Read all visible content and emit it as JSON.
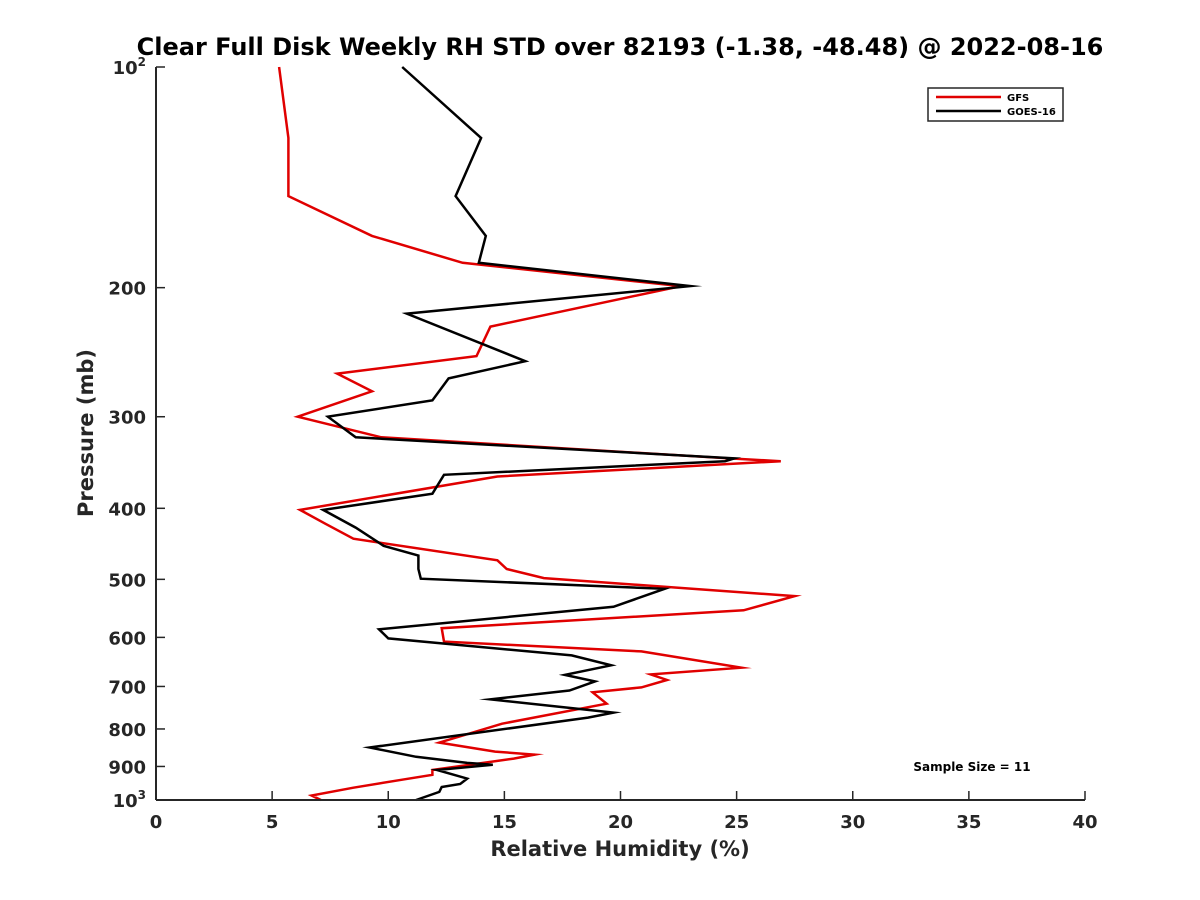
{
  "chart_data": {
    "type": "line",
    "title": "Clear Full Disk Weekly RH STD over 82193 (-1.38, -48.48) @ 2022-08-16",
    "xlabel": "Relative Humidity (%)",
    "ylabel": "Pressure (mb)",
    "xlim": [
      0,
      40
    ],
    "ylim": [
      100,
      1000
    ],
    "y_scale": "log",
    "y_reversed": true,
    "grid": false,
    "legend_position": "top-right",
    "x_ticks": [
      {
        "value": 0,
        "label": "0"
      },
      {
        "value": 5,
        "label": "5"
      },
      {
        "value": 10,
        "label": "10"
      },
      {
        "value": 15,
        "label": "15"
      },
      {
        "value": 20,
        "label": "20"
      },
      {
        "value": 25,
        "label": "25"
      },
      {
        "value": 30,
        "label": "30"
      },
      {
        "value": 35,
        "label": "35"
      },
      {
        "value": 40,
        "label": "40"
      }
    ],
    "y_ticks": [
      {
        "value": 100,
        "label": "10",
        "sup": "2"
      },
      {
        "value": 200,
        "label": "200"
      },
      {
        "value": 300,
        "label": "300"
      },
      {
        "value": 400,
        "label": "400"
      },
      {
        "value": 500,
        "label": "500"
      },
      {
        "value": 600,
        "label": "600"
      },
      {
        "value": 700,
        "label": "700"
      },
      {
        "value": 800,
        "label": "800"
      },
      {
        "value": 900,
        "label": "900"
      },
      {
        "value": 1000,
        "label": "10",
        "sup": "3"
      }
    ],
    "series": [
      {
        "name": "GFS",
        "color": "#e00000",
        "points": [
          [
            5.3,
            100
          ],
          [
            5.7,
            125
          ],
          [
            5.7,
            150
          ],
          [
            9.3,
            170
          ],
          [
            13.2,
            185
          ],
          [
            22.6,
            199
          ],
          [
            14.4,
            226
          ],
          [
            13.8,
            248
          ],
          [
            7.8,
            262
          ],
          [
            9.3,
            277
          ],
          [
            6.1,
            300
          ],
          [
            9.7,
            320
          ],
          [
            24.7,
            342
          ],
          [
            26.9,
            345
          ],
          [
            14.7,
            362
          ],
          [
            6.2,
            402
          ],
          [
            7.3,
            420
          ],
          [
            8.5,
            440
          ],
          [
            14.7,
            471
          ],
          [
            15.1,
            484
          ],
          [
            16.7,
            498
          ],
          [
            27.5,
            527
          ],
          [
            25.3,
            551
          ],
          [
            12.3,
            583
          ],
          [
            12.4,
            608
          ],
          [
            20.9,
            627
          ],
          [
            25.2,
            660
          ],
          [
            21.3,
            674
          ],
          [
            22.0,
            686
          ],
          [
            20.9,
            702
          ],
          [
            18.8,
            713
          ],
          [
            19.4,
            739
          ],
          [
            14.9,
            787
          ],
          [
            12.2,
            835
          ],
          [
            14.6,
            859
          ],
          [
            16.3,
            867
          ],
          [
            15.4,
            878
          ],
          [
            11.9,
            910
          ],
          [
            11.9,
            924
          ],
          [
            10.7,
            937
          ],
          [
            8.5,
            962
          ],
          [
            6.7,
            986
          ],
          [
            7.1,
            1000
          ]
        ]
      },
      {
        "name": "GOES-16",
        "color": "#000000",
        "points": [
          [
            10.6,
            100
          ],
          [
            14.0,
            125
          ],
          [
            12.9,
            150
          ],
          [
            14.2,
            170
          ],
          [
            13.9,
            185
          ],
          [
            23.0,
            199
          ],
          [
            10.8,
            217
          ],
          [
            15.9,
            252
          ],
          [
            12.6,
            266
          ],
          [
            11.9,
            285
          ],
          [
            7.4,
            300
          ],
          [
            8.6,
            320
          ],
          [
            24.9,
            342
          ],
          [
            24.5,
            345
          ],
          [
            12.4,
            360
          ],
          [
            11.9,
            382
          ],
          [
            7.2,
            402
          ],
          [
            8.6,
            425
          ],
          [
            9.8,
            450
          ],
          [
            11.3,
            464
          ],
          [
            11.3,
            484
          ],
          [
            11.4,
            499
          ],
          [
            21.9,
            515
          ],
          [
            19.7,
            545
          ],
          [
            9.6,
            585
          ],
          [
            10.0,
            602
          ],
          [
            17.9,
            635
          ],
          [
            19.6,
            655
          ],
          [
            17.6,
            675
          ],
          [
            18.9,
            689
          ],
          [
            17.8,
            709
          ],
          [
            14.4,
            729
          ],
          [
            19.7,
            760
          ],
          [
            18.6,
            772
          ],
          [
            9.2,
            848
          ],
          [
            11.2,
            873
          ],
          [
            13.4,
            890
          ],
          [
            14.5,
            895
          ],
          [
            12.1,
            910
          ],
          [
            13.4,
            935
          ],
          [
            13.1,
            951
          ],
          [
            12.3,
            960
          ],
          [
            12.2,
            975
          ],
          [
            11.2,
            1000
          ]
        ]
      }
    ],
    "annotations": [
      {
        "text": "Sample Size = 11"
      }
    ]
  }
}
